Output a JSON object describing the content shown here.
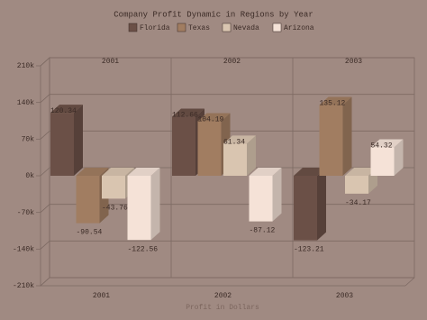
{
  "chart_data": {
    "type": "bar3d",
    "title": "Company Profit Dynamic in Regions by Year",
    "x_label": "Profit in Dollars",
    "categories": [
      "2001",
      "2002",
      "2003"
    ],
    "series": [
      {
        "name": "Florida",
        "color": "#6b5047",
        "values": [
          120340,
          112660,
          -123210
        ],
        "value_labels": [
          "120.34",
          "112.66",
          "-123.21"
        ]
      },
      {
        "name": "Texas",
        "color": "#a17d61",
        "values": [
          -90540,
          104190,
          135120
        ],
        "value_labels": [
          "-90.54",
          "104.19",
          "135.12"
        ]
      },
      {
        "name": "Nevada",
        "color": "#d9c5b0",
        "values": [
          -43760,
          61340,
          -34170
        ],
        "value_labels": [
          "-43.76",
          "61.34",
          "-34.17"
        ]
      },
      {
        "name": "Arizona",
        "color": "#f5e2d7",
        "values": [
          -122560,
          -87120,
          54320
        ],
        "value_labels": [
          "-122.56",
          "-87.12",
          "54.32"
        ]
      }
    ],
    "ylim": [
      -210000,
      210000
    ],
    "yticks": [
      {
        "value": -210000,
        "label": "-210k"
      },
      {
        "value": -140000,
        "label": "-140k"
      },
      {
        "value": -70000,
        "label": "-70k"
      },
      {
        "value": 0,
        "label": "0k"
      },
      {
        "value": 70000,
        "label": "70k"
      },
      {
        "value": 140000,
        "label": "140k"
      },
      {
        "value": 210000,
        "label": "210k"
      }
    ],
    "grid": true,
    "legend": "top"
  }
}
